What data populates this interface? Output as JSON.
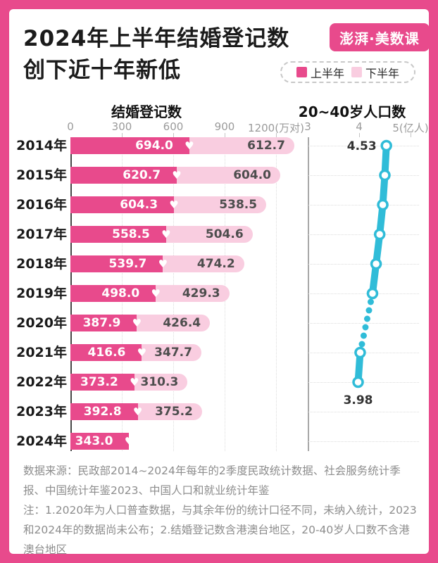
{
  "header": {
    "title_line1": "2024年上半年结婚登记数",
    "title_line2": "创下近十年新低",
    "logo": "澎湃·美数课"
  },
  "legend": {
    "items": [
      {
        "label": "上半年",
        "color": "#e84a8c"
      },
      {
        "label": "下半年",
        "color": "#f9cde0"
      }
    ]
  },
  "colors": {
    "accent_pink": "#e84a8c",
    "light_pink": "#f9cde0",
    "teal": "#30bcd8",
    "value_on_light": "#4d4d4d",
    "axis_text": "#9a9a9a"
  },
  "chart_data": [
    {
      "type": "bar",
      "title": "结婚登记数",
      "orientation": "horizontal",
      "stacked": true,
      "unit": "万对",
      "axis_ticks": [
        "0",
        "300",
        "600",
        "900",
        "1200(万对)"
      ],
      "xlim": [
        0,
        1300
      ],
      "grid": "vertical-dotted",
      "categories": [
        "2014年",
        "2015年",
        "2016年",
        "2017年",
        "2018年",
        "2019年",
        "2020年",
        "2021年",
        "2022年",
        "2023年",
        "2024年"
      ],
      "series": [
        {
          "name": "上半年",
          "values": [
            694.0,
            620.7,
            604.3,
            558.5,
            539.7,
            498.0,
            387.9,
            416.6,
            373.2,
            392.8,
            343.0
          ]
        },
        {
          "name": "下半年",
          "values": [
            612.7,
            604.0,
            538.5,
            504.6,
            474.2,
            429.3,
            426.4,
            347.7,
            310.3,
            375.2,
            null
          ]
        }
      ]
    },
    {
      "type": "line",
      "title": "20~40岁人口数",
      "unit": "亿人",
      "axis_ticks": [
        "3",
        "4",
        "5(亿人)"
      ],
      "xlim": [
        3,
        5
      ],
      "grid": "horizontal-dotted",
      "categories": [
        "2014年",
        "2015年",
        "2016年",
        "2017年",
        "2018年",
        "2019年",
        "2020年",
        "2021年",
        "2022年",
        "2023年",
        "2024年"
      ],
      "values": [
        4.53,
        4.5,
        4.46,
        4.4,
        4.33,
        4.26,
        null,
        4.02,
        3.98,
        null,
        null
      ],
      "first_label": "4.53",
      "last_label": "3.98",
      "note": "2020 shown as dotted gap (census data, different statistical scope)"
    }
  ],
  "footer": {
    "source": "数据来源：民政部2014~2024年每年的2季度民政统计数据、社会服务统计季报、中国统计年鉴2023、中国人口和就业统计年鉴",
    "note": "注：1.2020年为人口普查数据，与其余年份的统计口径不同，未纳入统计，2023和2024年的数据尚未公布；2.结婚登记数含港澳台地区，20-40岁人口数不含港澳台地区"
  }
}
